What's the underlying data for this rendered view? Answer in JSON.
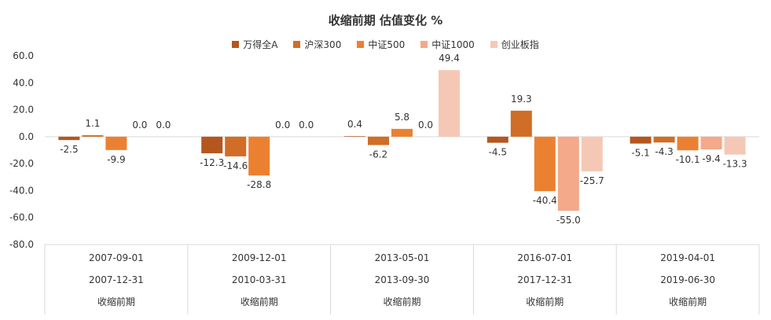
{
  "chart_data": {
    "type": "bar",
    "title": "收缩前期 估值变化 %",
    "ylim": [
      -80,
      60
    ],
    "yticks": [
      "60.0",
      "40.0",
      "20.0",
      "0.0",
      "-20.0",
      "-40.0",
      "-60.0",
      "-80.0"
    ],
    "grid": false,
    "legend_position": "top",
    "categories": [
      {
        "start": "2007-09-01",
        "end": "2007-12-31",
        "label": "收缩前期"
      },
      {
        "start": "2009-12-01",
        "end": "2010-03-31",
        "label": "收缩前期"
      },
      {
        "start": "2013-05-01",
        "end": "2013-09-30",
        "label": "收缩前期"
      },
      {
        "start": "2016-07-01",
        "end": "2017-12-31",
        "label": "收缩前期"
      },
      {
        "start": "2019-04-01",
        "end": "2019-06-30",
        "label": "收缩前期"
      }
    ],
    "series": [
      {
        "name": "万得全A",
        "color": "#b5561f",
        "values": [
          -2.5,
          -12.3,
          0.4,
          -4.5,
          -5.1
        ],
        "labels": [
          "-2.5",
          "-12.3",
          "0.4",
          "-4.5",
          "-5.1"
        ]
      },
      {
        "name": "沪深300",
        "color": "#d06d26",
        "values": [
          1.1,
          -14.6,
          -6.2,
          19.3,
          -4.3
        ],
        "labels": [
          "1.1",
          "-14.6",
          "-6.2",
          "19.3",
          "-4.3"
        ]
      },
      {
        "name": "中证500",
        "color": "#ec8031",
        "values": [
          -9.9,
          -28.8,
          5.8,
          -40.4,
          -10.1
        ],
        "labels": [
          "-9.9",
          "-28.8",
          "5.8",
          "-40.4",
          "-10.1"
        ]
      },
      {
        "name": "中证1000",
        "color": "#f3a98a",
        "values": [
          0.0,
          0.0,
          0.0,
          -55.0,
          -9.4
        ],
        "labels": [
          "0.0",
          "0.0",
          "0.0",
          "-55.0",
          "-9.4"
        ]
      },
      {
        "name": "创业板指",
        "color": "#f5c8b6",
        "values": [
          0.0,
          0.0,
          49.4,
          -25.7,
          -13.3
        ],
        "labels": [
          "0.0",
          "0.0",
          "49.4",
          "-25.7",
          "-13.3"
        ]
      }
    ]
  }
}
